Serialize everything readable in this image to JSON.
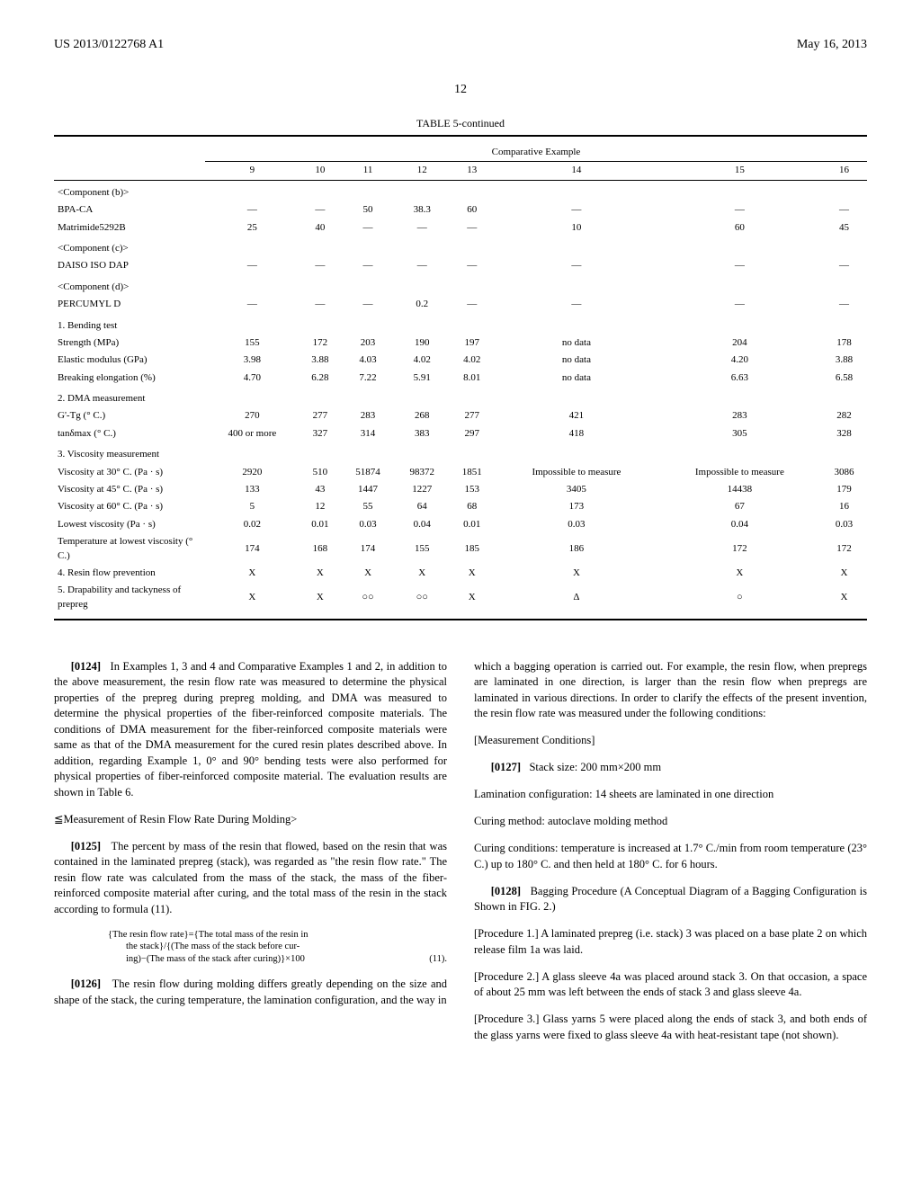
{
  "header": {
    "left": "US 2013/0122768 A1",
    "right": "May 16, 2013"
  },
  "page_number": "12",
  "table": {
    "title": "TABLE 5-continued",
    "group_header": "Comparative Example",
    "col_nums": [
      "9",
      "10",
      "11",
      "12",
      "13",
      "14",
      "15",
      "16"
    ],
    "sections": [
      {
        "label": "<Component (b)>"
      },
      {
        "rows": [
          {
            "label": "BPA-CA",
            "vals": [
              "—",
              "—",
              "50",
              "38.3",
              "60",
              "—",
              "—",
              "—"
            ]
          },
          {
            "label": "Matrimide5292B",
            "vals": [
              "25",
              "40",
              "—",
              "—",
              "—",
              "10",
              "60",
              "45"
            ]
          }
        ]
      },
      {
        "label": "<Component (c)>"
      },
      {
        "rows": [
          {
            "label": "DAISO ISO DAP",
            "vals": [
              "—",
              "—",
              "—",
              "—",
              "—",
              "—",
              "—",
              "—"
            ]
          }
        ]
      },
      {
        "label": "<Component (d)>"
      },
      {
        "rows": [
          {
            "label": "PERCUMYL D",
            "vals": [
              "—",
              "—",
              "—",
              "0.2",
              "—",
              "—",
              "—",
              "—"
            ]
          }
        ]
      },
      {
        "label": "1. Bending test"
      },
      {
        "rows": [
          {
            "label": "Strength (MPa)",
            "vals": [
              "155",
              "172",
              "203",
              "190",
              "197",
              "no data",
              "204",
              "178"
            ]
          },
          {
            "label": "Elastic modulus (GPa)",
            "vals": [
              "3.98",
              "3.88",
              "4.03",
              "4.02",
              "4.02",
              "no data",
              "4.20",
              "3.88"
            ]
          },
          {
            "label": "Breaking elongation (%)",
            "vals": [
              "4.70",
              "6.28",
              "7.22",
              "5.91",
              "8.01",
              "no data",
              "6.63",
              "6.58"
            ]
          }
        ]
      },
      {
        "label": "2. DMA measurement"
      },
      {
        "rows": [
          {
            "label": "G'-Tg (° C.)",
            "vals": [
              "270",
              "277",
              "283",
              "268",
              "277",
              "421",
              "283",
              "282"
            ]
          },
          {
            "label": "tanδmax (° C.)",
            "vals": [
              "400 or more",
              "327",
              "314",
              "383",
              "297",
              "418",
              "305",
              "328"
            ]
          }
        ]
      },
      {
        "label": "3. Viscosity measurement"
      },
      {
        "rows": [
          {
            "label": "Viscosity at 30° C. (Pa · s)",
            "vals": [
              "2920",
              "510",
              "51874",
              "98372",
              "1851",
              "Impossible to measure",
              "Impossible to measure",
              "3086"
            ]
          },
          {
            "label": "Viscosity at 45° C. (Pa · s)",
            "vals": [
              "133",
              "43",
              "1447",
              "1227",
              "153",
              "3405",
              "14438",
              "179"
            ]
          },
          {
            "label": "Viscosity at 60° C. (Pa · s)",
            "vals": [
              "5",
              "12",
              "55",
              "64",
              "68",
              "173",
              "67",
              "16"
            ]
          },
          {
            "label": "Lowest viscosity (Pa · s)",
            "vals": [
              "0.02",
              "0.01",
              "0.03",
              "0.04",
              "0.01",
              "0.03",
              "0.04",
              "0.03"
            ]
          },
          {
            "label": "Temperature at lowest viscosity (° C.)",
            "vals": [
              "174",
              "168",
              "174",
              "155",
              "185",
              "186",
              "172",
              "172"
            ]
          }
        ]
      },
      {
        "rows": [
          {
            "label": "4. Resin flow prevention",
            "vals": [
              "X",
              "X",
              "X",
              "X",
              "X",
              "X",
              "X",
              "X"
            ]
          },
          {
            "label": "5. Drapability and tackyness of prepreg",
            "vals": [
              "X",
              "X",
              "○○",
              "○○",
              "X",
              "Δ",
              "○",
              "X"
            ]
          }
        ]
      }
    ]
  },
  "body": {
    "p0124": "In Examples 1, 3 and 4 and Comparative Examples 1 and 2, in addition to the above measurement, the resin flow rate was measured to determine the physical properties of the prepreg during prepreg molding, and DMA was measured to determine the physical properties of the fiber-reinforced composite materials. The conditions of DMA measurement for the fiber-reinforced composite materials were same as that of the DMA measurement for the cured resin plates described above. In addition, regarding Example 1, 0° and 90° bending tests were also performed for physical properties of fiber-reinforced composite material. The evaluation results are shown in Table 6.",
    "subhead_flow": "≦Measurement of Resin Flow Rate During Molding>",
    "p0125": "The percent by mass of the resin that flowed, based on the resin that was contained in the laminated prepreg (stack), was regarded as \"the resin flow rate.\" The resin flow rate was calculated from the mass of the stack, the mass of the fiber-reinforced composite material after curing, and the total mass of the resin in the stack according to formula (11).",
    "formula_l1": "{The resin flow rate}={The total mass of the resin in",
    "formula_l2": "the stack}/{(The mass of the stack before cur-",
    "formula_l3": "ing)−(The mass of the stack after curing)}×100",
    "formula_num": "(11).",
    "p0126": "The resin flow during molding differs greatly depending on the size and shape of the stack, the curing temperature, the lamination configuration, and the way in",
    "col2_intro": "which a bagging operation is carried out. For example, the resin flow, when prepregs are laminated in one direction, is larger than the resin flow when prepregs are laminated in various directions. In order to clarify the effects of the present invention, the resin flow rate was measured under the following conditions:",
    "subhead_cond": "[Measurement Conditions]",
    "p0127": "Stack size: 200 mm×200 mm",
    "lam": "Lamination configuration: 14 sheets are laminated in one direction",
    "curing_method": "Curing method: autoclave molding method",
    "curing_cond": "Curing conditions: temperature is increased at 1.7° C./min from room temperature (23° C.) up to 180° C. and then held at 180° C. for 6 hours.",
    "p0128": "Bagging Procedure (A Conceptual Diagram of a Bagging Configuration is Shown in FIG. 2.)",
    "proc1_label": "[Procedure 1.]",
    "proc1": "A laminated prepreg (i.e. stack) 3 was placed on a base plate 2 on which release film 1a was laid.",
    "proc2_label": "[Procedure 2.]",
    "proc2": "A glass sleeve 4a was placed around stack 3. On that occasion, a space of about 25 mm was left between the ends of stack 3 and glass sleeve 4a.",
    "proc3_label": "[Procedure 3.]",
    "proc3": "Glass yarns 5 were placed along the ends of stack 3, and both ends of the glass yarns were fixed to glass sleeve 4a with heat-resistant tape (not shown)."
  },
  "labels": {
    "n0124": "[0124]",
    "n0125": "[0125]",
    "n0126": "[0126]",
    "n0127": "[0127]",
    "n0128": "[0128]"
  }
}
